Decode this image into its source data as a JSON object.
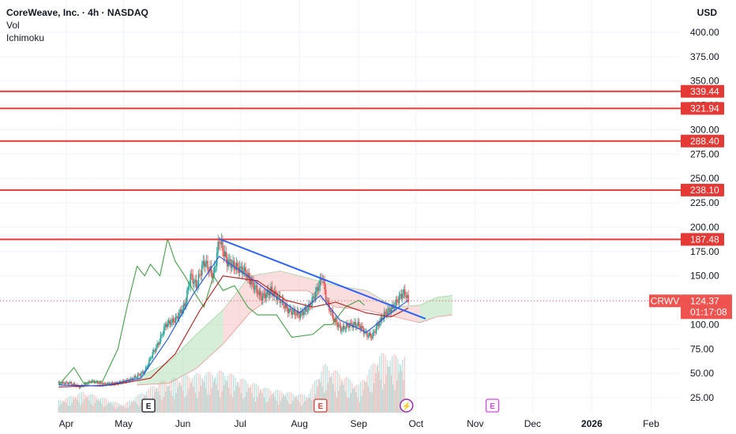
{
  "legend": {
    "title": "CoreWeave, Inc. · 4h · NASDAQ",
    "indicator1": "Vol",
    "indicator2": "Ichimoku"
  },
  "currency": "USD",
  "colors": {
    "resistance": "#e53935",
    "trendline": "#2962ff",
    "price": "#ef5350",
    "up": "#26a69a",
    "down": "#ef5350",
    "conversion": "#1e53e5",
    "base": "#b71c1c",
    "lagging": "#43a047",
    "cloud_bull": "#a5d6a7",
    "cloud_bear": "#f5b5b5"
  },
  "chart_data": {
    "type": "candlestick",
    "symbol": "CRWV",
    "y_ticks": [
      "25.00",
      "50.00",
      "75.00",
      "100.00",
      "125.00",
      "150.00",
      "175.00",
      "200.00",
      "225.00",
      "250.00",
      "275.00",
      "300.00",
      "325.00",
      "350.00",
      "375.00",
      "400.00"
    ],
    "ylim": [
      12,
      420
    ],
    "x_ticks": [
      {
        "label": "Apr",
        "date": "2025-04-01"
      },
      {
        "label": "May",
        "date": "2025-05-01"
      },
      {
        "label": "Jun",
        "date": "2025-06-01"
      },
      {
        "label": "Jul",
        "date": "2025-07-01"
      },
      {
        "label": "Aug",
        "date": "2025-08-01"
      },
      {
        "label": "Sep",
        "date": "2025-09-01"
      },
      {
        "label": "Oct",
        "date": "2025-10-01"
      },
      {
        "label": "Nov",
        "date": "2025-11-01"
      },
      {
        "label": "Dec",
        "date": "2025-12-01"
      },
      {
        "label": "2026",
        "date": "2026-01-01"
      },
      {
        "label": "Feb",
        "date": "2026-02-01"
      }
    ],
    "resistance_levels": [
      "339.44",
      "321.94",
      "288.40",
      "238.10",
      "187.48"
    ],
    "last_price": {
      "symbol": "CRWV",
      "value": "124.37",
      "countdown": "01:17:08"
    },
    "trendline": [
      {
        "date": "2025-06-20",
        "value": 188
      },
      {
        "date": "2025-10-06",
        "value": 106
      }
    ],
    "price_path": [
      {
        "date": "2025-03-28",
        "value": 40
      },
      {
        "date": "2025-04-03",
        "value": 40
      },
      {
        "date": "2025-04-08",
        "value": 36
      },
      {
        "date": "2025-04-14",
        "value": 42
      },
      {
        "date": "2025-04-21",
        "value": 39
      },
      {
        "date": "2025-04-28",
        "value": 40
      },
      {
        "date": "2025-05-05",
        "value": 44
      },
      {
        "date": "2025-05-12",
        "value": 52
      },
      {
        "date": "2025-05-16",
        "value": 70
      },
      {
        "date": "2025-05-19",
        "value": 80
      },
      {
        "date": "2025-05-23",
        "value": 100
      },
      {
        "date": "2025-05-28",
        "value": 105
      },
      {
        "date": "2025-06-02",
        "value": 120
      },
      {
        "date": "2025-06-05",
        "value": 150
      },
      {
        "date": "2025-06-08",
        "value": 140
      },
      {
        "date": "2025-06-12",
        "value": 165
      },
      {
        "date": "2025-06-17",
        "value": 150
      },
      {
        "date": "2025-06-20",
        "value": 188
      },
      {
        "date": "2025-06-24",
        "value": 165
      },
      {
        "date": "2025-06-28",
        "value": 160
      },
      {
        "date": "2025-07-03",
        "value": 155
      },
      {
        "date": "2025-07-08",
        "value": 140
      },
      {
        "date": "2025-07-12",
        "value": 128
      },
      {
        "date": "2025-07-17",
        "value": 135
      },
      {
        "date": "2025-07-22",
        "value": 125
      },
      {
        "date": "2025-07-26",
        "value": 115
      },
      {
        "date": "2025-08-01",
        "value": 110
      },
      {
        "date": "2025-08-06",
        "value": 118
      },
      {
        "date": "2025-08-10",
        "value": 135
      },
      {
        "date": "2025-08-13",
        "value": 150
      },
      {
        "date": "2025-08-15",
        "value": 125
      },
      {
        "date": "2025-08-19",
        "value": 105
      },
      {
        "date": "2025-08-23",
        "value": 95
      },
      {
        "date": "2025-08-27",
        "value": 100
      },
      {
        "date": "2025-09-01",
        "value": 100
      },
      {
        "date": "2025-09-05",
        "value": 90
      },
      {
        "date": "2025-09-08",
        "value": 88
      },
      {
        "date": "2025-09-11",
        "value": 100
      },
      {
        "date": "2025-09-15",
        "value": 112
      },
      {
        "date": "2025-09-19",
        "value": 118
      },
      {
        "date": "2025-09-23",
        "value": 130
      },
      {
        "date": "2025-09-25",
        "value": 133
      },
      {
        "date": "2025-09-27",
        "value": 124
      }
    ],
    "volume_path": [
      {
        "date": "2025-03-28",
        "value": 18
      },
      {
        "date": "2025-04-10",
        "value": 30
      },
      {
        "date": "2025-05-01",
        "value": 12
      },
      {
        "date": "2025-05-20",
        "value": 45
      },
      {
        "date": "2025-06-05",
        "value": 55
      },
      {
        "date": "2025-06-22",
        "value": 60
      },
      {
        "date": "2025-07-15",
        "value": 35
      },
      {
        "date": "2025-08-05",
        "value": 25
      },
      {
        "date": "2025-08-14",
        "value": 70
      },
      {
        "date": "2025-09-01",
        "value": 40
      },
      {
        "date": "2025-09-12",
        "value": 85
      },
      {
        "date": "2025-09-25",
        "value": 80
      }
    ],
    "conversion_line": [
      {
        "date": "2025-03-28",
        "value": 38
      },
      {
        "date": "2025-04-20",
        "value": 37
      },
      {
        "date": "2025-05-10",
        "value": 45
      },
      {
        "date": "2025-05-24",
        "value": 85
      },
      {
        "date": "2025-06-06",
        "value": 130
      },
      {
        "date": "2025-06-20",
        "value": 170
      },
      {
        "date": "2025-07-05",
        "value": 150
      },
      {
        "date": "2025-07-20",
        "value": 128
      },
      {
        "date": "2025-08-01",
        "value": 112
      },
      {
        "date": "2025-08-12",
        "value": 130
      },
      {
        "date": "2025-08-22",
        "value": 105
      },
      {
        "date": "2025-09-05",
        "value": 92
      },
      {
        "date": "2025-09-15",
        "value": 108
      },
      {
        "date": "2025-09-27",
        "value": 125
      }
    ],
    "base_line": [
      {
        "date": "2025-03-28",
        "value": 36
      },
      {
        "date": "2025-04-25",
        "value": 38
      },
      {
        "date": "2025-05-15",
        "value": 45
      },
      {
        "date": "2025-05-28",
        "value": 70
      },
      {
        "date": "2025-06-10",
        "value": 115
      },
      {
        "date": "2025-06-22",
        "value": 150
      },
      {
        "date": "2025-07-10",
        "value": 145
      },
      {
        "date": "2025-07-25",
        "value": 125
      },
      {
        "date": "2025-08-08",
        "value": 118
      },
      {
        "date": "2025-08-20",
        "value": 123
      },
      {
        "date": "2025-09-05",
        "value": 112
      },
      {
        "date": "2025-09-18",
        "value": 108
      },
      {
        "date": "2025-09-27",
        "value": 117
      }
    ],
    "lagging_span": [
      {
        "date": "2025-03-28",
        "value": 38
      },
      {
        "date": "2025-04-05",
        "value": 56
      },
      {
        "date": "2025-04-10",
        "value": 40
      },
      {
        "date": "2025-04-20",
        "value": 42
      },
      {
        "date": "2025-04-28",
        "value": 75
      },
      {
        "date": "2025-05-03",
        "value": 120
      },
      {
        "date": "2025-05-08",
        "value": 160
      },
      {
        "date": "2025-05-12",
        "value": 150
      },
      {
        "date": "2025-05-15",
        "value": 162
      },
      {
        "date": "2025-05-20",
        "value": 150
      },
      {
        "date": "2025-05-24",
        "value": 188
      },
      {
        "date": "2025-05-28",
        "value": 165
      },
      {
        "date": "2025-06-02",
        "value": 150
      },
      {
        "date": "2025-06-08",
        "value": 130
      },
      {
        "date": "2025-06-12",
        "value": 118
      },
      {
        "date": "2025-06-17",
        "value": 150
      },
      {
        "date": "2025-06-22",
        "value": 135
      },
      {
        "date": "2025-06-28",
        "value": 140
      },
      {
        "date": "2025-07-05",
        "value": 118
      },
      {
        "date": "2025-07-10",
        "value": 110
      },
      {
        "date": "2025-07-20",
        "value": 110
      },
      {
        "date": "2025-07-28",
        "value": 87
      },
      {
        "date": "2025-08-08",
        "value": 90
      },
      {
        "date": "2025-08-14",
        "value": 100
      },
      {
        "date": "2025-08-18",
        "value": 100
      },
      {
        "date": "2025-08-25",
        "value": 118
      },
      {
        "date": "2025-09-01",
        "value": 125
      },
      {
        "date": "2025-09-04",
        "value": 120
      }
    ],
    "cloud": [
      {
        "date": "2025-05-08",
        "upper": 45,
        "lower": 38
      },
      {
        "date": "2025-05-25",
        "upper": 62,
        "lower": 40
      },
      {
        "date": "2025-06-08",
        "upper": 90,
        "lower": 55
      },
      {
        "date": "2025-06-22",
        "upper": 115,
        "lower": 80
      },
      {
        "date": "2025-07-06",
        "upper": 150,
        "lower": 112
      },
      {
        "date": "2025-07-22",
        "upper": 155,
        "lower": 135
      },
      {
        "date": "2025-08-05",
        "upper": 148,
        "lower": 135
      },
      {
        "date": "2025-08-20",
        "upper": 140,
        "lower": 118
      },
      {
        "date": "2025-09-05",
        "upper": 135,
        "lower": 115
      },
      {
        "date": "2025-09-20",
        "upper": 118,
        "lower": 108
      },
      {
        "date": "2025-10-03",
        "upper": 120,
        "lower": 102
      },
      {
        "date": "2025-10-12",
        "upper": 128,
        "lower": 108
      },
      {
        "date": "2025-10-20",
        "upper": 130,
        "lower": 110
      }
    ],
    "events": [
      {
        "kind": "earnings",
        "label": "E",
        "date": "2025-05-14"
      },
      {
        "kind": "earnings",
        "label": "E",
        "date": "2025-08-12"
      },
      {
        "kind": "split",
        "label": "⚡",
        "date": "2025-09-26"
      },
      {
        "kind": "earnings-upcoming",
        "label": "E",
        "date": "2025-11-10"
      }
    ]
  }
}
